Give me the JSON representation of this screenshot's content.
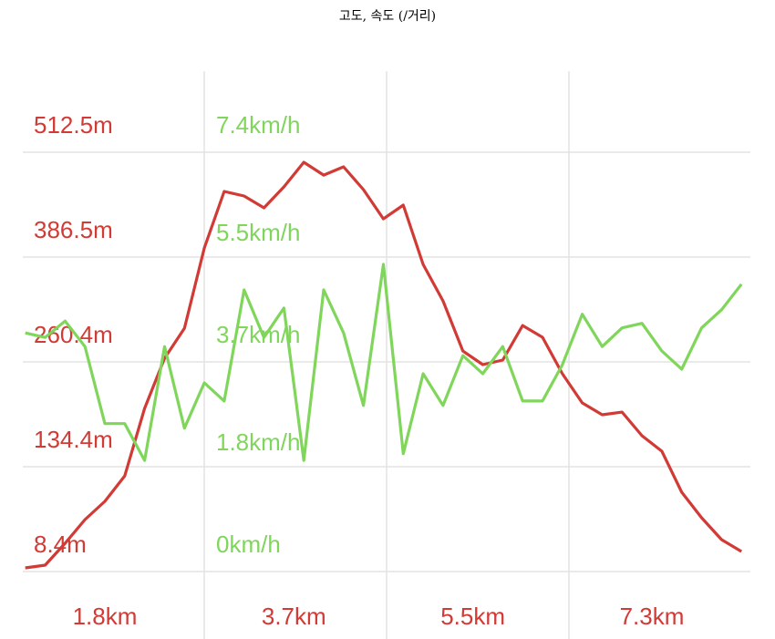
{
  "chart_data": {
    "type": "line",
    "title": "고도, 속도 (/거리)",
    "x": [
      1.0,
      1.2,
      1.4,
      1.6,
      1.8,
      2.0,
      2.2,
      2.4,
      2.6,
      2.8,
      3.0,
      3.2,
      3.4,
      3.6,
      3.8,
      4.0,
      4.2,
      4.4,
      4.6,
      4.8,
      5.0,
      5.2,
      5.4,
      5.6,
      5.8,
      6.0,
      6.2,
      6.4,
      6.6,
      6.8,
      7.0,
      7.2,
      7.4,
      7.6,
      7.8,
      8.0,
      8.2
    ],
    "series": [
      {
        "color": "#d13a35",
        "values": [
          12.8,
          16.1,
          42.4,
          70.9,
          92.8,
          123.4,
          204.5,
          264.8,
          300.9,
          397.4,
          465.3,
          459.9,
          445.6,
          470.8,
          500.4,
          485.0,
          494.9,
          467.5,
          432.4,
          448.9,
          377.6,
          333.8,
          273.5,
          257.1,
          262.6,
          304.2,
          290.0,
          246.2,
          211.1,
          196.9,
          200.1,
          171.7,
          153.0,
          103.7,
          73.0,
          46.7,
          32.5
        ]
      },
      {
        "color": "#7fd65a",
        "axis": "y2",
        "values": [
          4.21,
          4.13,
          4.42,
          3.97,
          2.61,
          2.61,
          1.96,
          3.97,
          2.53,
          3.33,
          3.01,
          4.97,
          4.13,
          4.65,
          1.96,
          4.97,
          4.21,
          2.93,
          5.42,
          2.08,
          3.49,
          2.93,
          3.81,
          3.49,
          3.97,
          3.01,
          3.01,
          3.65,
          4.54,
          3.97,
          4.3,
          4.38,
          3.89,
          3.57,
          4.3,
          4.62,
          5.07
        ]
      }
    ],
    "xlim": [
      0.975,
      8.29
    ],
    "xticks": [
      {
        "value": 1.8,
        "label": "1.8km"
      },
      {
        "value": 3.7,
        "label": "3.7km"
      },
      {
        "value": 5.5,
        "label": "5.5km"
      },
      {
        "value": 7.3,
        "label": "7.3km"
      }
    ],
    "ylim": [
      8.4,
      610
    ],
    "yticks": [
      {
        "value": 8.4,
        "label": "8.4m"
      },
      {
        "value": 134.4,
        "label": "134.4m"
      },
      {
        "value": 260.4,
        "label": "260.4m"
      },
      {
        "value": 386.5,
        "label": "386.5m"
      },
      {
        "value": 512.5,
        "label": "512.5m"
      }
    ],
    "y2lim": [
      0,
      8.83
    ],
    "y2ticks": [
      {
        "value": 0,
        "label": "0km/h"
      },
      {
        "value": 1.8,
        "label": "1.8km/h"
      },
      {
        "value": 3.7,
        "label": "3.7km/h"
      },
      {
        "value": 5.5,
        "label": "5.5km/h"
      },
      {
        "value": 7.4,
        "label": "7.4km/h"
      }
    ],
    "grid": true
  }
}
